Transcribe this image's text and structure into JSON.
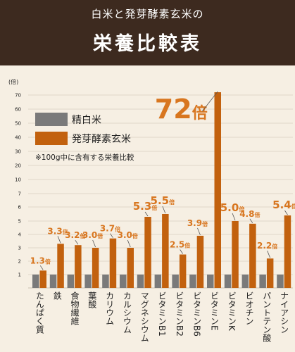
{
  "header": {
    "subtitle": "白米と発芽酵素玄米の",
    "title": "栄養比較表"
  },
  "note": "※100g中に含有する栄養比較",
  "chart_data": {
    "type": "bar",
    "y_unit": "(倍)",
    "y_ticks": [
      1,
      2,
      3,
      4,
      5,
      6,
      7,
      10,
      20,
      30,
      40,
      50,
      60,
      70
    ],
    "ylim": [
      0,
      75
    ],
    "y_scale": "piecewise",
    "grid": true,
    "legend_position": "left",
    "categories": [
      "たんぱく質",
      "鉄",
      "食物繊維",
      "葉酸",
      "カリウム",
      "カルシウム",
      "マグネシウム",
      "ビタミンB1",
      "ビタミンB2",
      "ビタミンB6",
      "ビタミンE",
      "ビタミンK",
      "ビオチン",
      "パントテン酸",
      "ナイアシン"
    ],
    "series": [
      {
        "name": "精白米",
        "color": "#7a7a7a",
        "values": [
          1,
          1,
          1,
          1,
          1,
          1,
          1,
          1,
          1,
          1,
          1,
          1,
          1,
          1,
          1
        ]
      },
      {
        "name": "発芽酵素玄米",
        "color": "#c2610e",
        "values": [
          1.3,
          3.3,
          3.2,
          3.0,
          3.7,
          3.0,
          5.3,
          5.5,
          2.5,
          3.9,
          72,
          5.0,
          4.8,
          2.2,
          5.4
        ]
      }
    ],
    "data_labels": [
      "1.3",
      "3.3",
      "3.2",
      "3.0",
      "3.7",
      "3.0",
      "5.3",
      "5.5",
      "2.5",
      "3.9",
      "72",
      "5.0",
      "4.8",
      "2.2",
      "5.4"
    ],
    "label_unit": "倍",
    "label_color": "#d8761f"
  }
}
